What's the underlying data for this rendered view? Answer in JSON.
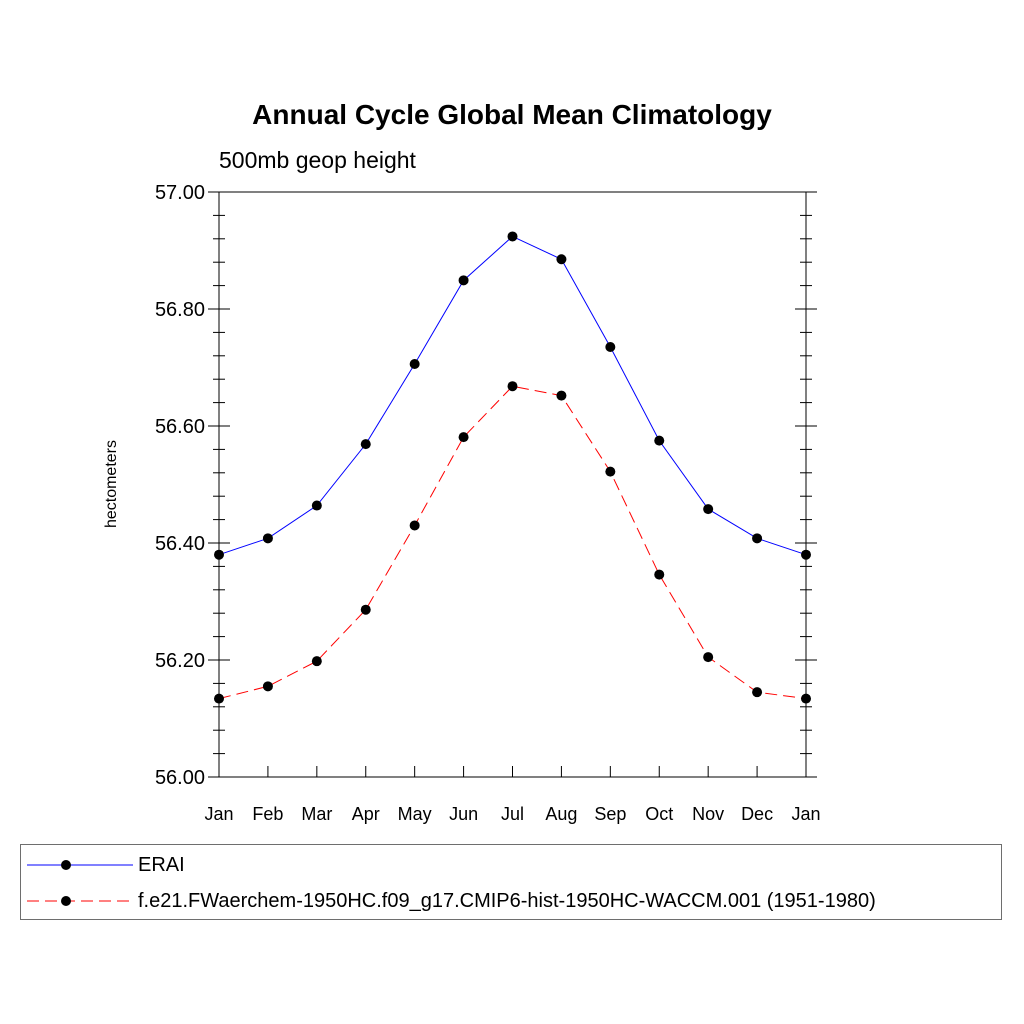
{
  "chart_data": {
    "type": "line",
    "title": "Annual Cycle Global Mean Climatology",
    "subtitle": "500mb geop height",
    "ylabel": "hectometers",
    "xlabel": "",
    "ylim": [
      56.0,
      57.0
    ],
    "yticks": [
      "56.00",
      "56.20",
      "56.40",
      "56.60",
      "56.80",
      "57.00"
    ],
    "categories": [
      "Jan",
      "Feb",
      "Mar",
      "Apr",
      "May",
      "Jun",
      "Jul",
      "Aug",
      "Sep",
      "Oct",
      "Nov",
      "Dec",
      "Jan"
    ],
    "series": [
      {
        "name": "ERAI",
        "color": "#0000ff",
        "dash": "solid",
        "marker": "filled-circle",
        "values": [
          56.38,
          56.408,
          56.464,
          56.569,
          56.706,
          56.849,
          56.924,
          56.885,
          56.735,
          56.575,
          56.458,
          56.408,
          56.38
        ]
      },
      {
        "name": "f.e21.FWaerchem-1950HC.f09_g17.CMIP6-hist-1950HC-WACCM.001 (1951-1980)",
        "color": "#ff0000",
        "dash": "dashed",
        "marker": "filled-circle",
        "values": [
          56.134,
          56.155,
          56.198,
          56.286,
          56.43,
          56.581,
          56.668,
          56.652,
          56.522,
          56.346,
          56.205,
          56.145,
          56.134
        ]
      }
    ],
    "grid": false,
    "legend": "bottom"
  }
}
